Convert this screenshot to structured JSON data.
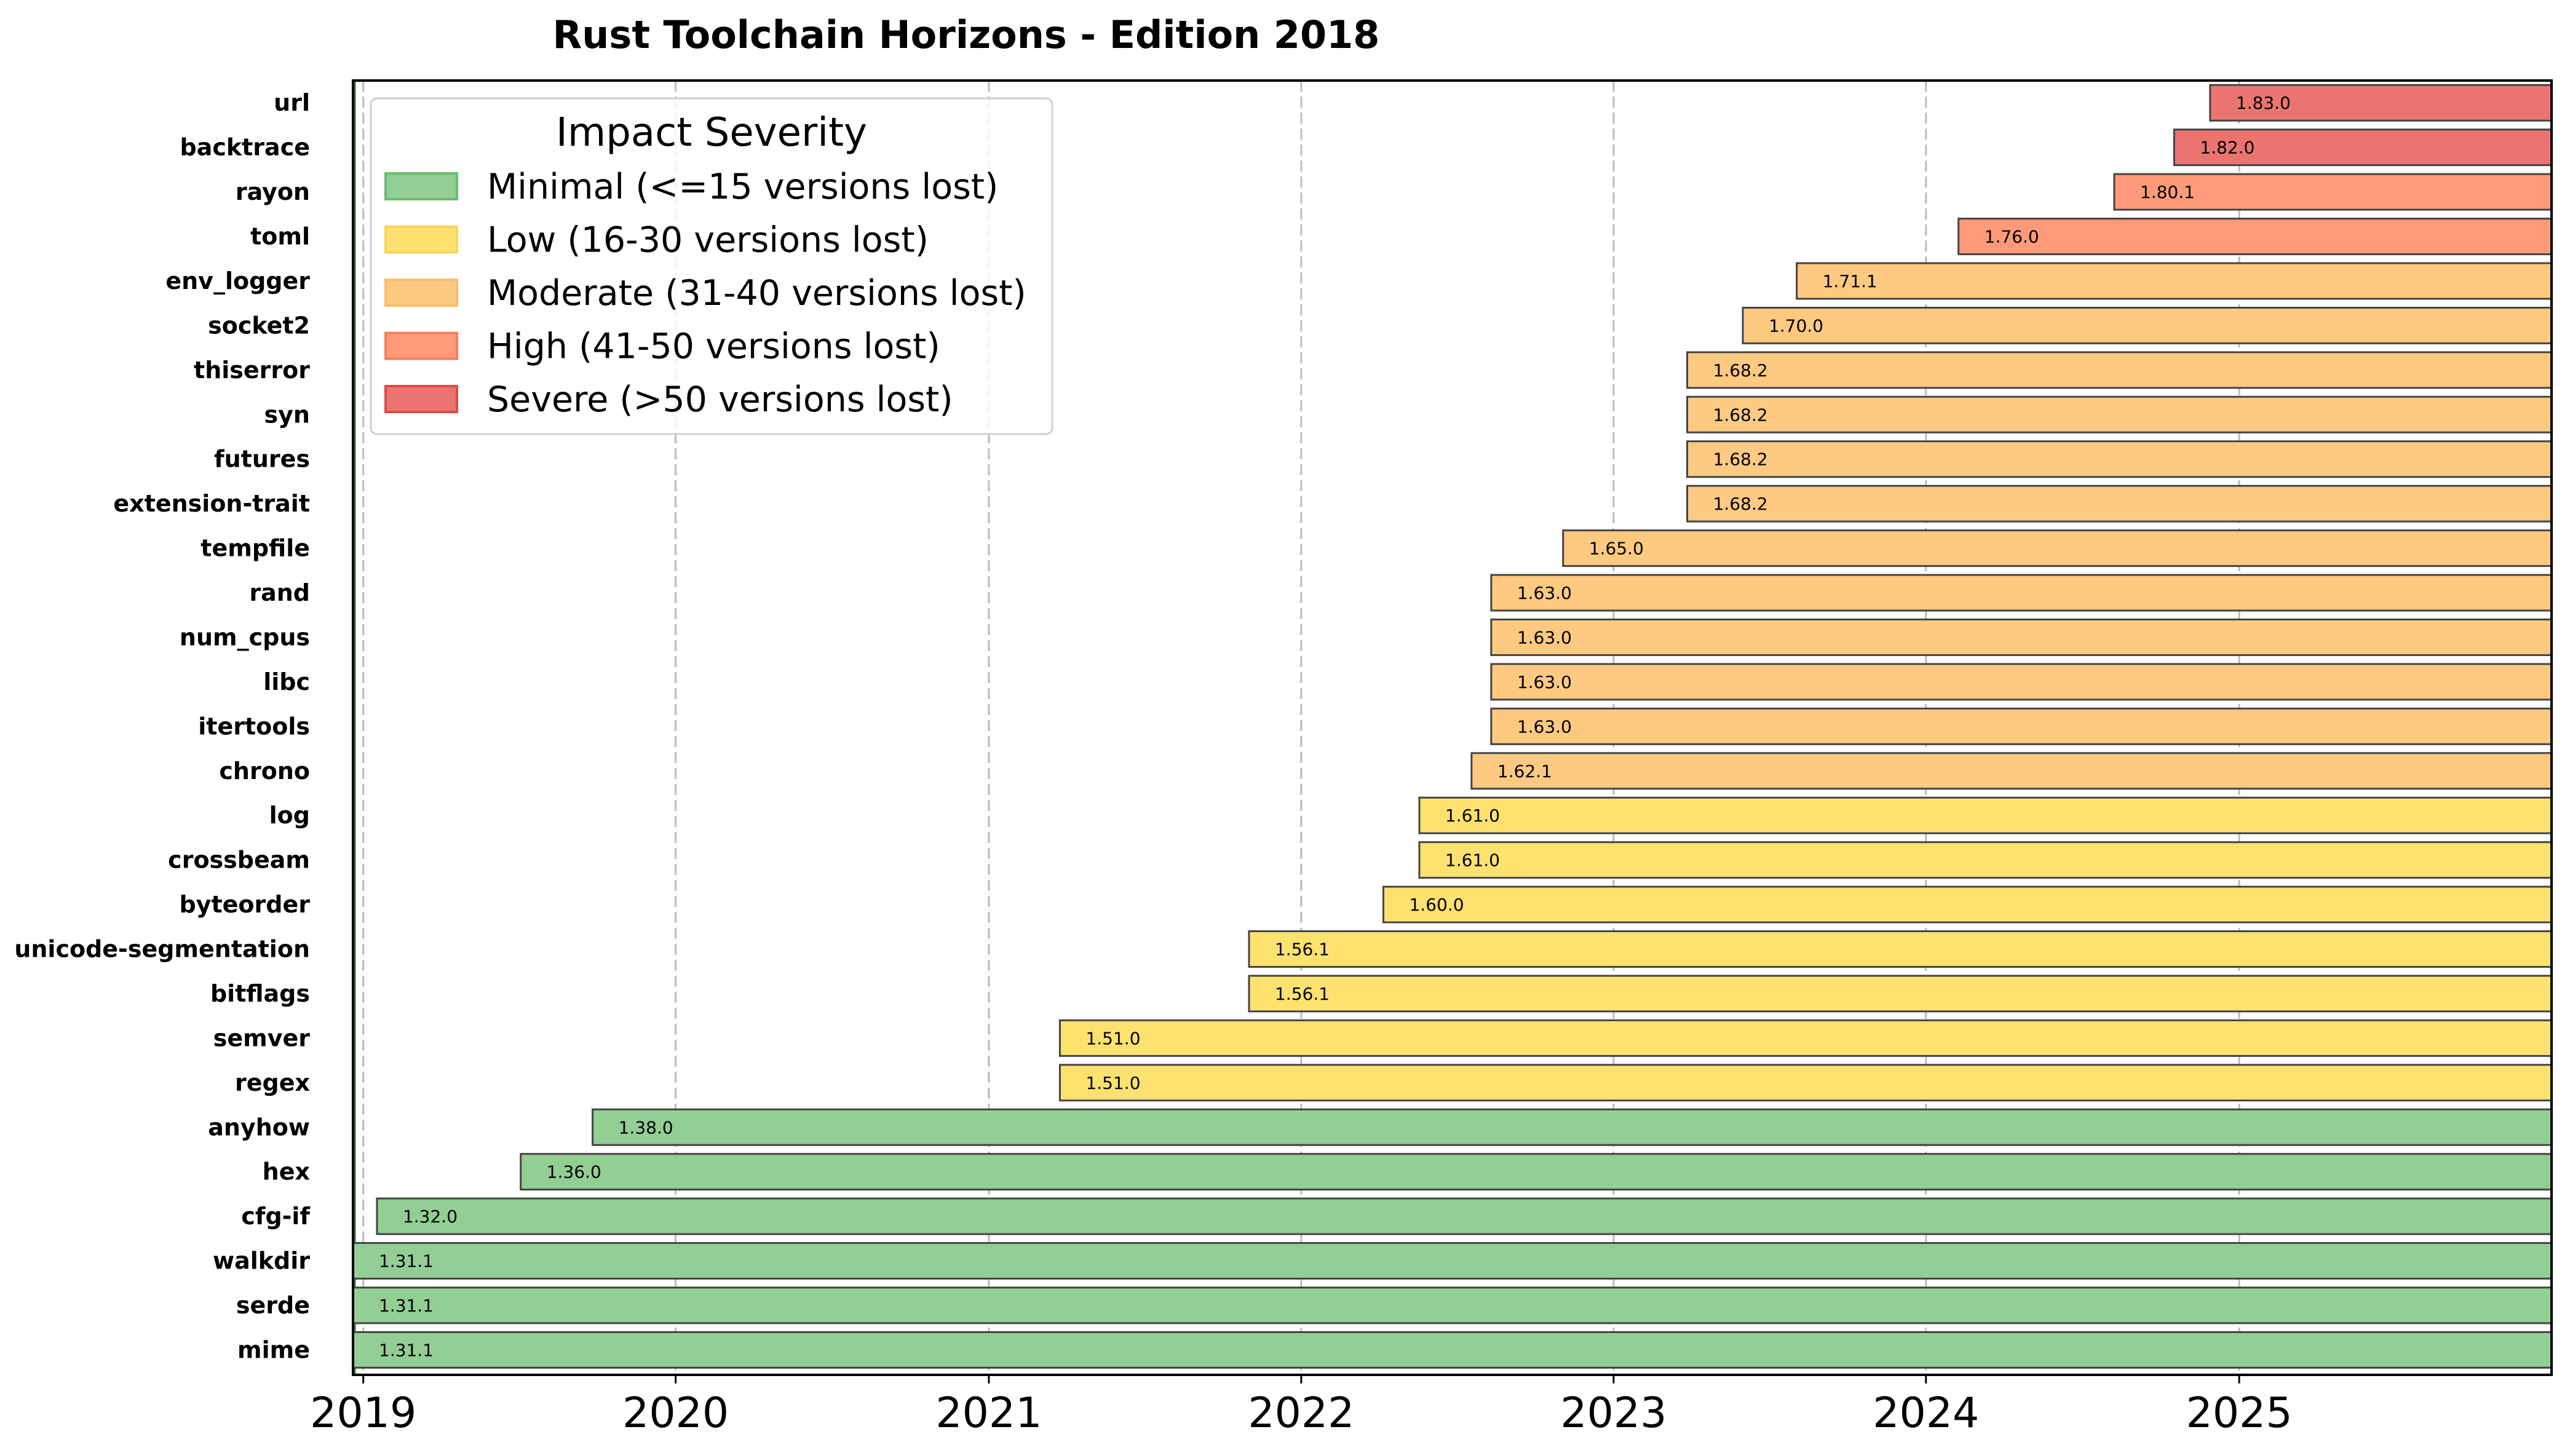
{
  "chart_data": {
    "type": "bar",
    "orientation": "horizontal-gantt",
    "title": "Rust Toolchain Horizons - Edition 2018",
    "xlabel": "",
    "ylabel": "",
    "xlim": [
      "2018-12-20",
      "2026-01-01"
    ],
    "x_ticks": [
      "2019",
      "2020",
      "2021",
      "2022",
      "2023",
      "2024",
      "2025"
    ],
    "grid": "vertical dashed at year ticks",
    "legend": {
      "title": "Impact Severity",
      "placement": "upper-left",
      "entries": [
        {
          "key": "minimal",
          "label": "Minimal (<=15 versions lost)",
          "color": "#93ce94",
          "edge": "#6cbb6e"
        },
        {
          "key": "low",
          "label": "Low (16-30 versions lost)",
          "color": "#fde26f",
          "edge": "#f6d55a"
        },
        {
          "key": "moderate",
          "label": "Moderate (31-40 versions lost)",
          "color": "#fec980",
          "edge": "#fcbb6a"
        },
        {
          "key": "high",
          "label": "High (41-50 versions lost)",
          "color": "#fe9a7a",
          "edge": "#f57f5c"
        },
        {
          "key": "severe",
          "label": "Severe (>50 versions lost)",
          "color": "#eb7471",
          "edge": "#dd4a47"
        }
      ]
    },
    "bar_end": "2026-01-01",
    "crates": [
      {
        "name": "mime",
        "version": "1.31.1",
        "start": "2018-12-20",
        "severity": "minimal"
      },
      {
        "name": "serde",
        "version": "1.31.1",
        "start": "2018-12-20",
        "severity": "minimal"
      },
      {
        "name": "walkdir",
        "version": "1.31.1",
        "start": "2018-12-20",
        "severity": "minimal"
      },
      {
        "name": "cfg-if",
        "version": "1.32.0",
        "start": "2019-01-17",
        "severity": "minimal"
      },
      {
        "name": "hex",
        "version": "1.36.0",
        "start": "2019-07-04",
        "severity": "minimal"
      },
      {
        "name": "anyhow",
        "version": "1.38.0",
        "start": "2019-09-26",
        "severity": "minimal"
      },
      {
        "name": "regex",
        "version": "1.51.0",
        "start": "2021-03-25",
        "severity": "low"
      },
      {
        "name": "semver",
        "version": "1.51.0",
        "start": "2021-03-25",
        "severity": "low"
      },
      {
        "name": "bitflags",
        "version": "1.56.1",
        "start": "2021-11-01",
        "severity": "low"
      },
      {
        "name": "unicode-segmentation",
        "version": "1.56.1",
        "start": "2021-11-01",
        "severity": "low"
      },
      {
        "name": "byteorder",
        "version": "1.60.0",
        "start": "2022-04-07",
        "severity": "low"
      },
      {
        "name": "crossbeam",
        "version": "1.61.0",
        "start": "2022-05-19",
        "severity": "low"
      },
      {
        "name": "log",
        "version": "1.61.0",
        "start": "2022-05-19",
        "severity": "low"
      },
      {
        "name": "chrono",
        "version": "1.62.1",
        "start": "2022-07-19",
        "severity": "moderate"
      },
      {
        "name": "itertools",
        "version": "1.63.0",
        "start": "2022-08-11",
        "severity": "moderate"
      },
      {
        "name": "libc",
        "version": "1.63.0",
        "start": "2022-08-11",
        "severity": "moderate"
      },
      {
        "name": "num_cpus",
        "version": "1.63.0",
        "start": "2022-08-11",
        "severity": "moderate"
      },
      {
        "name": "rand",
        "version": "1.63.0",
        "start": "2022-08-11",
        "severity": "moderate"
      },
      {
        "name": "tempfile",
        "version": "1.65.0",
        "start": "2022-11-03",
        "severity": "moderate"
      },
      {
        "name": "extension-trait",
        "version": "1.68.2",
        "start": "2023-03-28",
        "severity": "moderate"
      },
      {
        "name": "futures",
        "version": "1.68.2",
        "start": "2023-03-28",
        "severity": "moderate"
      },
      {
        "name": "syn",
        "version": "1.68.2",
        "start": "2023-03-28",
        "severity": "moderate"
      },
      {
        "name": "thiserror",
        "version": "1.68.2",
        "start": "2023-03-28",
        "severity": "moderate"
      },
      {
        "name": "socket2",
        "version": "1.70.0",
        "start": "2023-06-01",
        "severity": "moderate"
      },
      {
        "name": "env_logger",
        "version": "1.71.1",
        "start": "2023-08-03",
        "severity": "moderate"
      },
      {
        "name": "toml",
        "version": "1.76.0",
        "start": "2024-02-08",
        "severity": "high"
      },
      {
        "name": "rayon",
        "version": "1.80.1",
        "start": "2024-08-08",
        "severity": "high"
      },
      {
        "name": "backtrace",
        "version": "1.82.0",
        "start": "2024-10-17",
        "severity": "severe"
      },
      {
        "name": "url",
        "version": "1.83.0",
        "start": "2024-11-28",
        "severity": "severe"
      }
    ]
  }
}
